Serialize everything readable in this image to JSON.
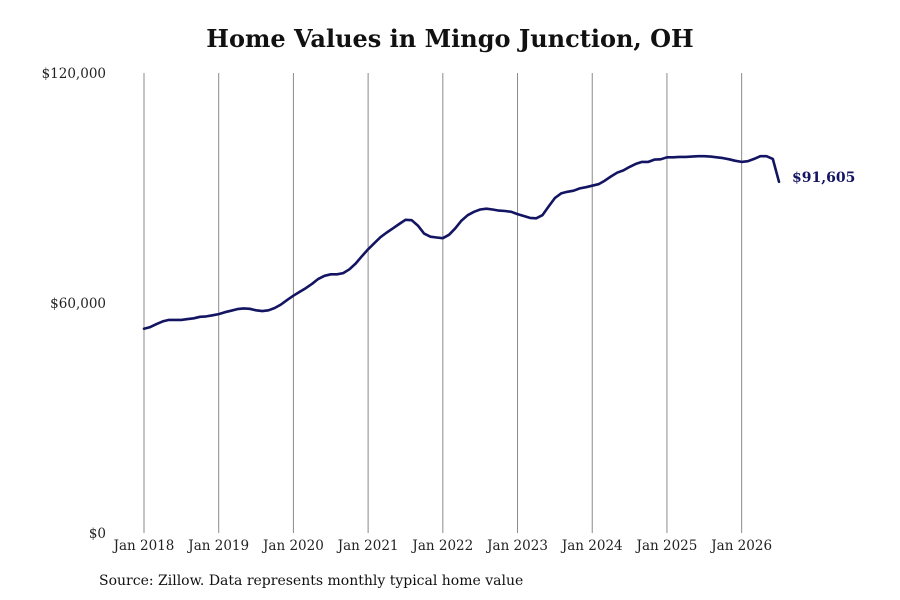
{
  "chart_data": {
    "type": "line",
    "title": "Home Values in Mingo Junction, OH",
    "xlabel": "",
    "ylabel": "",
    "x_ticks": [
      "Jan 2018",
      "Jan 2019",
      "Jan 2020",
      "Jan 2021",
      "Jan 2022",
      "Jan 2023",
      "Jan 2024",
      "Jan 2025",
      "Jan 2026"
    ],
    "y_ticks": [
      "$0",
      "$60,000",
      "$120,000"
    ],
    "y_tick_values": [
      0,
      60000,
      120000
    ],
    "ylim": [
      0,
      120000
    ],
    "xlim": [
      "2018-01",
      "2026-07"
    ],
    "grid": "vertical",
    "line_color": "#131462",
    "end_label": "$91,605",
    "series": [
      {
        "x": [
          "2018-01",
          "2018-02",
          "2018-03",
          "2018-04",
          "2018-05",
          "2018-06",
          "2018-07",
          "2018-08",
          "2018-09",
          "2018-10",
          "2018-11",
          "2018-12",
          "2019-01",
          "2019-02",
          "2019-03",
          "2019-04",
          "2019-05",
          "2019-06",
          "2019-07",
          "2019-08",
          "2019-09",
          "2019-10",
          "2019-11",
          "2019-12",
          "2020-01",
          "2020-02",
          "2020-03",
          "2020-04",
          "2020-05",
          "2020-06",
          "2020-07",
          "2020-08",
          "2020-09",
          "2020-10",
          "2020-11",
          "2020-12",
          "2021-01",
          "2021-02",
          "2021-03",
          "2021-04",
          "2021-05",
          "2021-06",
          "2021-07",
          "2021-08",
          "2021-09",
          "2021-10",
          "2021-11",
          "2021-12",
          "2022-01",
          "2022-02",
          "2022-03",
          "2022-04",
          "2022-05",
          "2022-06",
          "2022-07",
          "2022-08",
          "2022-09",
          "2022-10",
          "2022-11",
          "2022-12",
          "2023-01",
          "2023-02",
          "2023-03",
          "2023-04",
          "2023-05",
          "2023-06",
          "2023-07",
          "2023-08",
          "2023-09",
          "2023-10",
          "2023-11",
          "2023-12",
          "2024-01",
          "2024-02",
          "2024-03",
          "2024-04",
          "2024-05",
          "2024-06",
          "2024-07",
          "2024-08",
          "2024-09",
          "2024-10",
          "2024-11",
          "2024-12",
          "2025-01",
          "2025-02",
          "2025-03",
          "2025-04",
          "2025-05",
          "2025-06",
          "2025-07",
          "2025-08",
          "2025-09",
          "2025-10",
          "2025-11",
          "2025-12",
          "2026-01",
          "2026-02",
          "2026-03",
          "2026-04",
          "2026-05",
          "2026-06",
          "2026-07"
        ],
        "values": [
          53300,
          53700,
          54500,
          55200,
          55600,
          55600,
          55600,
          55800,
          56000,
          56400,
          56500,
          56800,
          57100,
          57600,
          58000,
          58400,
          58600,
          58500,
          58100,
          57900,
          58100,
          58700,
          59600,
          60800,
          61900,
          62900,
          63900,
          65000,
          66300,
          67100,
          67500,
          67500,
          67800,
          68800,
          70300,
          72200,
          74000,
          75600,
          77200,
          78400,
          79500,
          80600,
          81700,
          81600,
          80200,
          78100,
          77300,
          77100,
          76900,
          77800,
          79500,
          81500,
          82900,
          83800,
          84400,
          84600,
          84400,
          84100,
          84000,
          83800,
          83200,
          82700,
          82200,
          82100,
          82900,
          85200,
          87400,
          88600,
          89000,
          89300,
          89900,
          90200,
          90600,
          91000,
          91900,
          93000,
          94000,
          94600,
          95500,
          96300,
          96800,
          96800,
          97400,
          97500,
          98000,
          98000,
          98100,
          98100,
          98200,
          98300,
          98300,
          98200,
          98000,
          97800,
          97500,
          97100,
          96800,
          97000,
          97600,
          98300,
          98300,
          97600,
          91605
        ]
      }
    ]
  },
  "source_note": "Source: Zillow. Data represents monthly typical home value"
}
